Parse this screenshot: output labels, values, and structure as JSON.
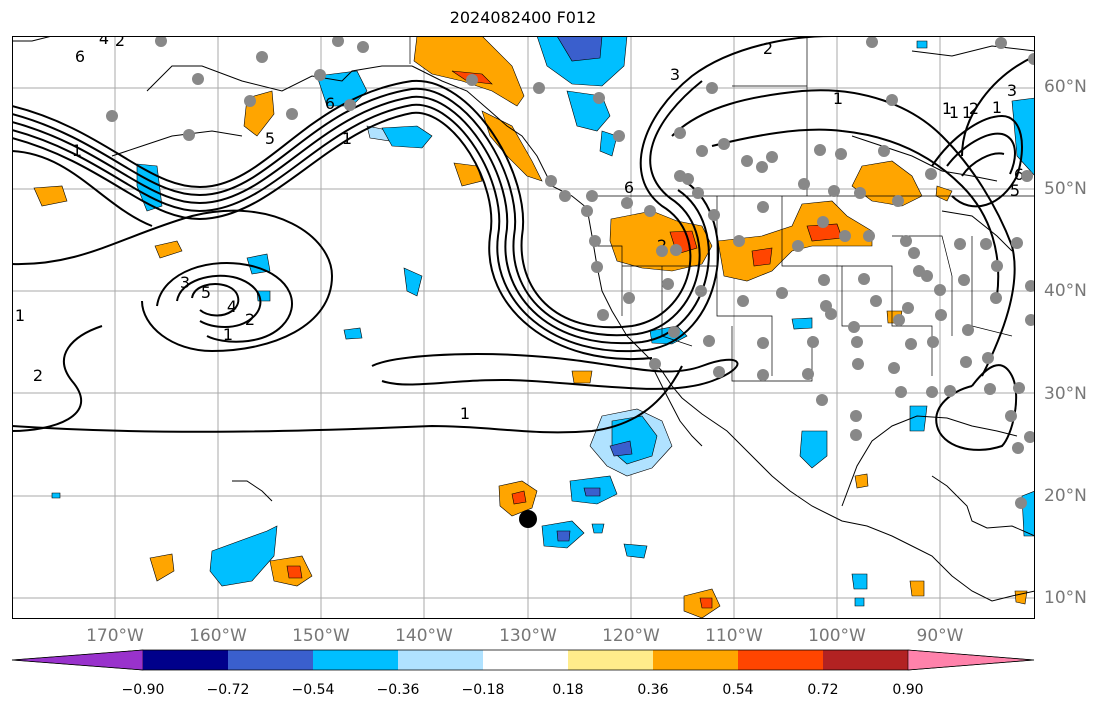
{
  "title": "2024082400 F012",
  "lat_labels": [
    "60°N",
    "50°N",
    "40°N",
    "30°N",
    "20°N",
    "10°N"
  ],
  "lon_labels": [
    "170°W",
    "160°W",
    "150°W",
    "140°W",
    "130°W",
    "120°W",
    "110°W",
    "100°W",
    "90°W"
  ],
  "colorbar": {
    "tick_labels": [
      "−0.90",
      "−0.72",
      "−0.54",
      "−0.36",
      "−0.18",
      "0.18",
      "0.36",
      "0.54",
      "0.72",
      "0.90"
    ],
    "colors": [
      "#9932cc",
      "#00008b",
      "#3a5fcd",
      "#00bfff",
      "#b0e2ff",
      "#ffffff",
      "#ffec8b",
      "#ffa500",
      "#ff4500",
      "#b22222",
      "#ff82ab"
    ]
  },
  "contour_labels": [
    "6",
    "4",
    "2",
    "1",
    "1",
    "5",
    "6",
    "1",
    "2",
    "3",
    "6",
    "1",
    "3",
    "5",
    "4",
    "2",
    "1",
    "1",
    "2",
    "1",
    "1",
    "1",
    "2",
    "3",
    "1",
    "6",
    "5",
    "2"
  ],
  "station_marker": "black-dot"
}
